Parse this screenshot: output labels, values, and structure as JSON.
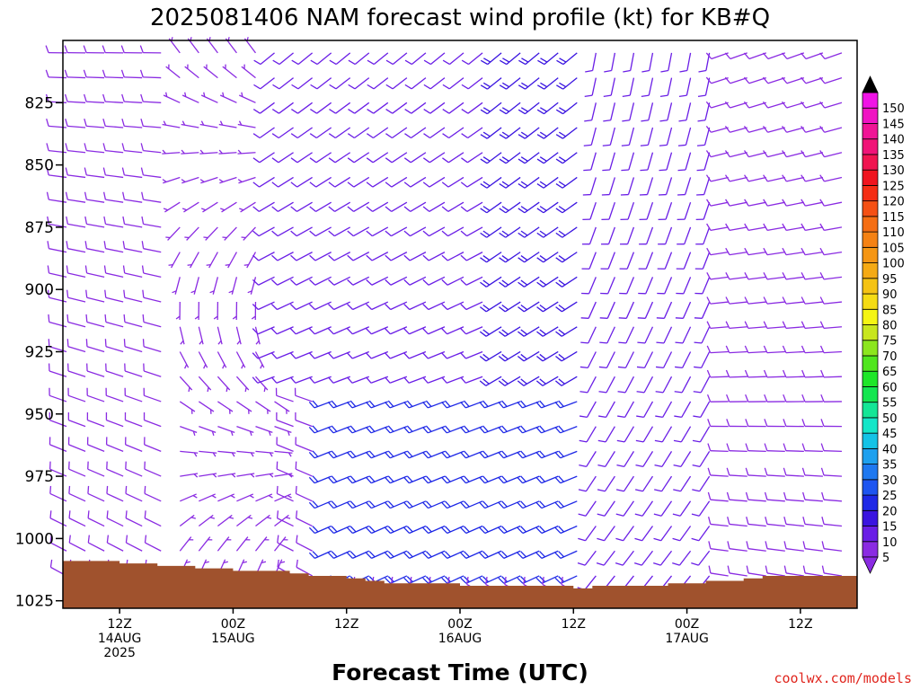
{
  "chart_data": {
    "type": "wind-barb profile",
    "title": "2025081406 NAM forecast wind profile (kt) for KB#Q",
    "xlabel": "Forecast Time (UTC)",
    "credit": "coolwx.com/models",
    "y_axis": {
      "scale": "pressure (hPa), inverted",
      "ylim": [
        1028,
        800
      ],
      "ticks": [
        "825",
        "850",
        "875",
        "900",
        "925",
        "950",
        "975",
        "1000",
        "1025"
      ]
    },
    "x_axis": {
      "range_hours": [
        0,
        84
      ],
      "ticks": [
        {
          "line1": "12Z",
          "line2": "14AUG",
          "line3": "2025",
          "hour": 6
        },
        {
          "line1": "00Z",
          "line2": "15AUG",
          "line3": "",
          "hour": 18
        },
        {
          "line1": "12Z",
          "line2": "",
          "line3": "",
          "hour": 30
        },
        {
          "line1": "00Z",
          "line2": "16AUG",
          "line3": "",
          "hour": 42
        },
        {
          "line1": "12Z",
          "line2": "",
          "line3": "",
          "hour": 54
        },
        {
          "line1": "00Z",
          "line2": "17AUG",
          "line3": "",
          "hour": 66
        },
        {
          "line1": "12Z",
          "line2": "",
          "line3": "",
          "hour": 78
        }
      ]
    },
    "colorbar": {
      "labels": [
        "5",
        "10",
        "15",
        "20",
        "25",
        "30",
        "35",
        "40",
        "45",
        "50",
        "55",
        "60",
        "65",
        "70",
        "75",
        "80",
        "85",
        "90",
        "95",
        "100",
        "105",
        "110",
        "115",
        "120",
        "125",
        "130",
        "135",
        "140",
        "145",
        "150"
      ],
      "colors": [
        "#8a2be2",
        "#6a1ee6",
        "#3a14e0",
        "#1e28e6",
        "#1e55f0",
        "#1e78f0",
        "#1ea0ee",
        "#14c3e6",
        "#14e6c8",
        "#14e696",
        "#14e650",
        "#1ee628",
        "#50e61e",
        "#8ce61e",
        "#c8e61e",
        "#f5f514",
        "#f5dc14",
        "#f5c314",
        "#f5aa14",
        "#f59614",
        "#f58214",
        "#f56e14",
        "#f55014",
        "#f52d14",
        "#f0141e",
        "#f01450",
        "#f01478",
        "#f01496",
        "#f014c3",
        "#f014e6"
      ],
      "over_color": "#000000",
      "under_color": "#8a2be2"
    },
    "surface_pressure": {
      "hours": [
        0,
        2,
        4,
        6,
        8,
        10,
        12,
        14,
        16,
        18,
        20,
        22,
        24,
        26,
        28,
        30,
        32,
        34,
        36,
        38,
        40,
        42,
        44,
        46,
        48,
        50,
        52,
        54,
        56,
        58,
        60,
        62,
        64,
        66,
        68,
        70,
        72,
        74,
        76,
        78,
        80,
        82,
        84
      ],
      "pressure": [
        1009,
        1009,
        1009,
        1010,
        1010,
        1011,
        1011,
        1012,
        1012,
        1013,
        1013,
        1013,
        1014,
        1015,
        1015,
        1016,
        1017,
        1018,
        1018,
        1018,
        1018,
        1019,
        1019,
        1019,
        1019,
        1019,
        1019,
        1020,
        1019,
        1019,
        1019,
        1019,
        1018,
        1018,
        1017,
        1017,
        1016,
        1015,
        1015,
        1015,
        1015,
        1015,
        1015
      ]
    },
    "wind": {
      "levels": [
        805,
        815,
        825,
        835,
        845,
        855,
        865,
        875,
        885,
        895,
        905,
        915,
        925,
        935,
        945,
        955,
        965,
        975,
        985,
        995,
        1005,
        1015,
        1022
      ],
      "regimes": [
        {
          "hours": [
            0,
            12
          ],
          "pmin": 800,
          "pmax": 1025,
          "dir_top": 270,
          "dir_bottom": 300,
          "speed": 8
        },
        {
          "hours": [
            12,
            22
          ],
          "pmin": 800,
          "pmax": 1025,
          "dir_top": 330,
          "dir_bottom": 10,
          "speed": 6
        },
        {
          "hours": [
            22,
            46
          ],
          "pmin": 800,
          "pmax": 940,
          "dir_top": 230,
          "dir_bottom": 250,
          "speed": 12
        },
        {
          "hours": [
            46,
            60
          ],
          "pmin": 800,
          "pmax": 940,
          "dir_top": 230,
          "dir_bottom": 240,
          "speed": 18
        },
        {
          "hours": [
            28,
            56
          ],
          "pmin": 940,
          "pmax": 1020,
          "dir_top": 250,
          "dir_bottom": 245,
          "speed": 22
        },
        {
          "hours": [
            56,
            70
          ],
          "pmin": 800,
          "pmax": 1025,
          "dir_top": 190,
          "dir_bottom": 220,
          "speed": 10
        },
        {
          "hours": [
            70,
            84
          ],
          "pmin": 800,
          "pmax": 1025,
          "dir_top": 250,
          "dir_bottom": 280,
          "speed": 9
        }
      ]
    }
  }
}
